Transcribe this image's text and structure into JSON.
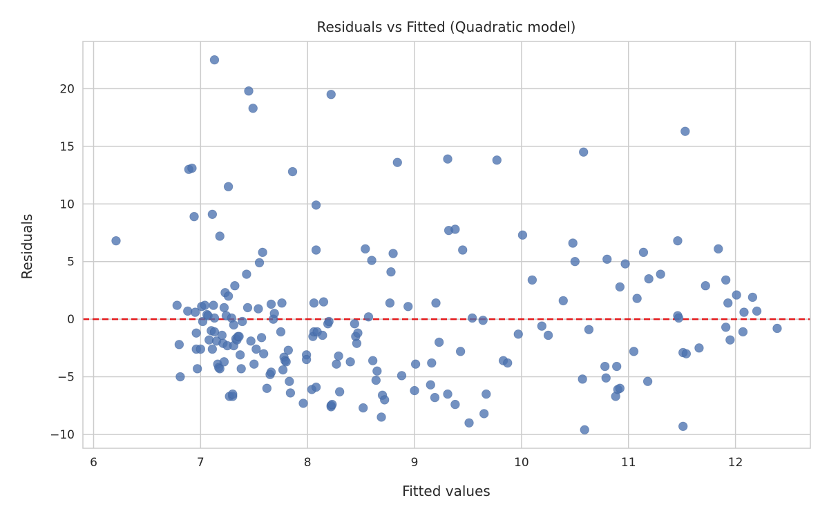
{
  "chart_data": {
    "type": "scatter",
    "title": "Residuals vs Fitted (Quadratic model)",
    "xlabel": "Fitted values",
    "ylabel": "Residuals",
    "xlim": [
      5.9,
      12.7
    ],
    "ylim": [
      -11.2,
      24.1
    ],
    "xticks": [
      6,
      7,
      8,
      9,
      10,
      11,
      12
    ],
    "yticks": [
      -10,
      -5,
      0,
      5,
      10,
      15,
      20
    ],
    "xtick_labels": [
      "6",
      "7",
      "8",
      "9",
      "10",
      "11",
      "12"
    ],
    "ytick_labels": [
      "−10",
      "−5",
      "0",
      "5",
      "10",
      "15",
      "20"
    ],
    "grid": true,
    "reference_line": {
      "y": 0,
      "style": "dashed",
      "color": "#e31a1c"
    },
    "point_color": "#4c72b0",
    "points": [
      [
        6.21,
        6.8
      ],
      [
        6.78,
        1.2
      ],
      [
        6.8,
        -2.2
      ],
      [
        6.81,
        -5.0
      ],
      [
        6.88,
        0.7
      ],
      [
        6.89,
        13.0
      ],
      [
        6.92,
        13.1
      ],
      [
        6.94,
        8.9
      ],
      [
        6.95,
        0.6
      ],
      [
        6.96,
        -1.2
      ],
      [
        6.96,
        -2.6
      ],
      [
        6.97,
        -4.3
      ],
      [
        7.0,
        -2.6
      ],
      [
        7.01,
        1.1
      ],
      [
        7.02,
        -0.2
      ],
      [
        7.04,
        1.2
      ],
      [
        7.06,
        0.4
      ],
      [
        7.07,
        0.3
      ],
      [
        7.08,
        -1.8
      ],
      [
        7.1,
        -1.0
      ],
      [
        7.11,
        9.1
      ],
      [
        7.11,
        -2.6
      ],
      [
        7.12,
        1.2
      ],
      [
        7.13,
        -1.1
      ],
      [
        7.13,
        0.1
      ],
      [
        7.13,
        22.5
      ],
      [
        7.15,
        -1.9
      ],
      [
        7.16,
        -3.9
      ],
      [
        7.17,
        -4.2
      ],
      [
        7.18,
        -4.3
      ],
      [
        7.18,
        7.2
      ],
      [
        7.2,
        -1.4
      ],
      [
        7.21,
        -2.1
      ],
      [
        7.22,
        1.0
      ],
      [
        7.22,
        -3.7
      ],
      [
        7.23,
        2.3
      ],
      [
        7.24,
        0.3
      ],
      [
        7.25,
        -2.3
      ],
      [
        7.26,
        2.0
      ],
      [
        7.26,
        11.5
      ],
      [
        7.27,
        -6.7
      ],
      [
        7.29,
        0.1
      ],
      [
        7.3,
        -6.7
      ],
      [
        7.3,
        -6.5
      ],
      [
        7.31,
        -0.5
      ],
      [
        7.31,
        -2.3
      ],
      [
        7.32,
        2.9
      ],
      [
        7.33,
        -1.7
      ],
      [
        7.34,
        -1.8
      ],
      [
        7.35,
        -1.5
      ],
      [
        7.36,
        -1.5
      ],
      [
        7.37,
        -3.1
      ],
      [
        7.38,
        -4.3
      ],
      [
        7.39,
        -0.2
      ],
      [
        7.43,
        3.9
      ],
      [
        7.44,
        1.0
      ],
      [
        7.45,
        19.8
      ],
      [
        7.47,
        -1.9
      ],
      [
        7.49,
        18.3
      ],
      [
        7.5,
        -3.9
      ],
      [
        7.52,
        -2.6
      ],
      [
        7.54,
        0.9
      ],
      [
        7.55,
        4.9
      ],
      [
        7.57,
        -1.6
      ],
      [
        7.58,
        5.8
      ],
      [
        7.59,
        -3.0
      ],
      [
        7.62,
        -6.0
      ],
      [
        7.65,
        -4.8
      ],
      [
        7.66,
        -4.6
      ],
      [
        7.66,
        1.3
      ],
      [
        7.68,
        0.0
      ],
      [
        7.69,
        0.5
      ],
      [
        7.75,
        -1.1
      ],
      [
        7.76,
        1.4
      ],
      [
        7.77,
        -4.4
      ],
      [
        7.78,
        -3.3
      ],
      [
        7.79,
        -3.6
      ],
      [
        7.8,
        -3.7
      ],
      [
        7.82,
        -2.7
      ],
      [
        7.83,
        -5.4
      ],
      [
        7.84,
        -6.4
      ],
      [
        7.86,
        12.8
      ],
      [
        7.96,
        -7.3
      ],
      [
        7.99,
        -3.1
      ],
      [
        7.99,
        -3.5
      ],
      [
        8.04,
        -6.1
      ],
      [
        8.05,
        -1.5
      ],
      [
        8.06,
        -1.1
      ],
      [
        8.06,
        1.4
      ],
      [
        8.08,
        9.9
      ],
      [
        8.08,
        6.0
      ],
      [
        8.08,
        -5.9
      ],
      [
        8.09,
        -1.1
      ],
      [
        8.14,
        -1.4
      ],
      [
        8.15,
        1.5
      ],
      [
        8.19,
        -0.4
      ],
      [
        8.2,
        -0.2
      ],
      [
        8.22,
        19.5
      ],
      [
        8.22,
        -7.5
      ],
      [
        8.22,
        -7.6
      ],
      [
        8.23,
        -7.4
      ],
      [
        8.27,
        -3.9
      ],
      [
        8.29,
        -3.2
      ],
      [
        8.3,
        -6.3
      ],
      [
        8.4,
        -3.7
      ],
      [
        8.44,
        -0.4
      ],
      [
        8.45,
        -1.5
      ],
      [
        8.46,
        -2.1
      ],
      [
        8.47,
        -1.2
      ],
      [
        8.52,
        -7.7
      ],
      [
        8.54,
        6.1
      ],
      [
        8.57,
        0.2
      ],
      [
        8.6,
        5.1
      ],
      [
        8.61,
        -3.6
      ],
      [
        8.64,
        -5.3
      ],
      [
        8.65,
        -4.5
      ],
      [
        8.69,
        -8.5
      ],
      [
        8.7,
        -6.6
      ],
      [
        8.72,
        -7.0
      ],
      [
        8.77,
        1.4
      ],
      [
        8.78,
        4.1
      ],
      [
        8.8,
        5.7
      ],
      [
        8.84,
        13.6
      ],
      [
        8.88,
        -4.9
      ],
      [
        8.94,
        1.1
      ],
      [
        9.0,
        -6.2
      ],
      [
        9.01,
        -3.9
      ],
      [
        9.15,
        -5.7
      ],
      [
        9.16,
        -3.8
      ],
      [
        9.19,
        -6.8
      ],
      [
        9.2,
        1.4
      ],
      [
        9.23,
        -2.0
      ],
      [
        9.31,
        13.9
      ],
      [
        9.31,
        -6.5
      ],
      [
        9.32,
        7.7
      ],
      [
        9.38,
        7.8
      ],
      [
        9.38,
        -7.4
      ],
      [
        9.43,
        -2.8
      ],
      [
        9.45,
        6.0
      ],
      [
        9.51,
        -9.0
      ],
      [
        9.54,
        0.1
      ],
      [
        9.64,
        -0.1
      ],
      [
        9.65,
        -8.2
      ],
      [
        9.67,
        -6.5
      ],
      [
        9.77,
        13.8
      ],
      [
        9.83,
        -3.6
      ],
      [
        9.87,
        -3.8
      ],
      [
        9.97,
        -1.3
      ],
      [
        10.01,
        7.3
      ],
      [
        10.1,
        3.4
      ],
      [
        10.19,
        -0.6
      ],
      [
        10.25,
        -1.4
      ],
      [
        10.39,
        1.6
      ],
      [
        10.48,
        6.6
      ],
      [
        10.5,
        5.0
      ],
      [
        10.57,
        -5.2
      ],
      [
        10.58,
        14.5
      ],
      [
        10.59,
        -9.6
      ],
      [
        10.63,
        -0.9
      ],
      [
        10.78,
        -4.1
      ],
      [
        10.79,
        -5.1
      ],
      [
        10.8,
        5.2
      ],
      [
        10.88,
        -6.7
      ],
      [
        10.89,
        -4.1
      ],
      [
        10.9,
        -6.1
      ],
      [
        10.92,
        2.8
      ],
      [
        10.92,
        -6.0
      ],
      [
        10.97,
        4.8
      ],
      [
        11.05,
        -2.8
      ],
      [
        11.08,
        1.8
      ],
      [
        11.14,
        5.8
      ],
      [
        11.18,
        -5.4
      ],
      [
        11.19,
        3.5
      ],
      [
        11.3,
        3.9
      ],
      [
        11.46,
        6.8
      ],
      [
        11.46,
        0.3
      ],
      [
        11.47,
        0.1
      ],
      [
        11.51,
        -2.9
      ],
      [
        11.51,
        -9.3
      ],
      [
        11.53,
        16.3
      ],
      [
        11.54,
        -3.0
      ],
      [
        11.66,
        -2.5
      ],
      [
        11.72,
        2.9
      ],
      [
        11.84,
        6.1
      ],
      [
        11.91,
        -0.7
      ],
      [
        11.91,
        3.4
      ],
      [
        11.93,
        1.4
      ],
      [
        11.95,
        -1.8
      ],
      [
        12.01,
        2.1
      ],
      [
        12.07,
        -1.1
      ],
      [
        12.08,
        0.6
      ],
      [
        12.16,
        1.9
      ],
      [
        12.2,
        0.7
      ],
      [
        12.39,
        -0.8
      ]
    ]
  }
}
